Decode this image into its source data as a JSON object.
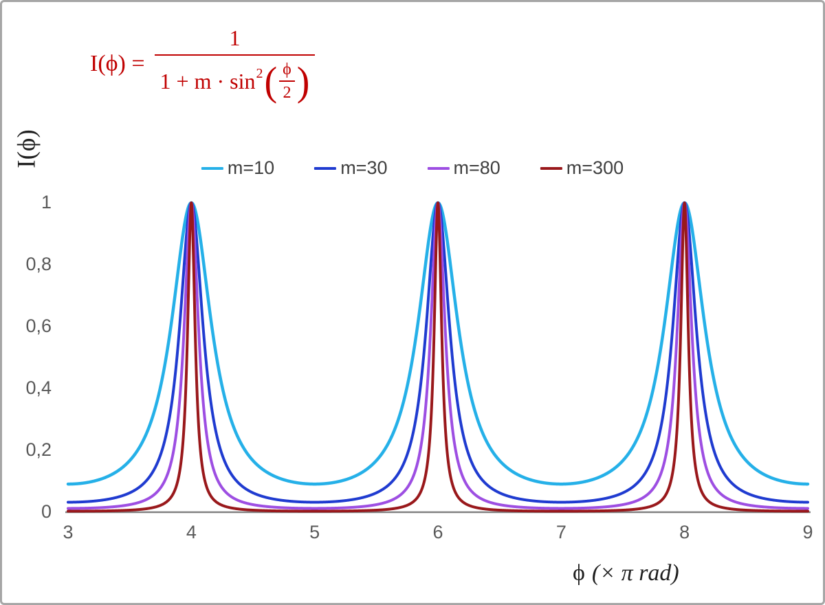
{
  "chart": {
    "frame_color": "#a6a6a6",
    "axis_color": "#808080",
    "tick_color": "#595959",
    "formula": {
      "color": "#c00000",
      "lhs": "I(ϕ) =",
      "numerator": "1",
      "den_prefix": "1 + m · sin",
      "den_sup": "2",
      "inner_num": "ϕ",
      "inner_den": "2"
    },
    "y_axis_label": "I(ϕ)",
    "x_axis_label_phi": "ϕ",
    "x_axis_label_unit": "(× π rad)"
  },
  "chart_data": {
    "type": "line",
    "title": "",
    "function": "I(phi) = 1 / (1 + m * sin^2(phi/2)), phi expressed in units of pi rad",
    "x": {
      "min": 3,
      "max": 9,
      "step": 0.0025,
      "unit": "π rad"
    },
    "ylim": [
      0,
      1.08
    ],
    "grid": false,
    "legend_position": "top-center",
    "x_ticks": [
      {
        "value": 3,
        "label": "3"
      },
      {
        "value": 4,
        "label": "4"
      },
      {
        "value": 5,
        "label": "5"
      },
      {
        "value": 6,
        "label": "6"
      },
      {
        "value": 7,
        "label": "7"
      },
      {
        "value": 8,
        "label": "8"
      },
      {
        "value": 9,
        "label": "9"
      }
    ],
    "y_ticks": [
      {
        "value": 0,
        "label": "0"
      },
      {
        "value": 0.2,
        "label": "0,2"
      },
      {
        "value": 0.4,
        "label": "0,4"
      },
      {
        "value": 0.6,
        "label": "0,6"
      },
      {
        "value": 0.8,
        "label": "0,8"
      },
      {
        "value": 1,
        "label": "1"
      }
    ],
    "series": [
      {
        "name": "m=10",
        "m": 10,
        "color": "#25b0e8",
        "stroke_width": 4.5,
        "minimum_value": 0.091
      },
      {
        "name": "m=30",
        "m": 30,
        "color": "#1f3bd0",
        "stroke_width": 4.0,
        "minimum_value": 0.032
      },
      {
        "name": "m=80",
        "m": 80,
        "color": "#9d4ee2",
        "stroke_width": 4.0,
        "minimum_value": 0.012
      },
      {
        "name": "m=300",
        "m": 300,
        "color": "#99181b",
        "stroke_width": 4.0,
        "minimum_value": 0.003
      }
    ],
    "peaks_at_x": [
      4,
      6,
      8
    ],
    "peak_value": 1
  }
}
